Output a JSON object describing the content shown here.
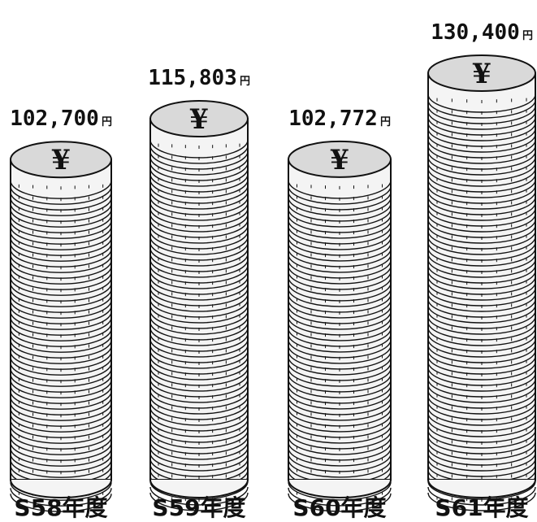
{
  "chart_data": {
    "type": "bar",
    "style": "coin-stack pictogram",
    "categories": [
      "S58年度",
      "S59年度",
      "S60年度",
      "S61年度"
    ],
    "values": [
      102700,
      115803,
      102772,
      130400
    ],
    "value_labels": [
      "102,700",
      "115,803",
      "102,772",
      "130,400"
    ],
    "unit": "円",
    "coin_symbol": "¥",
    "title": "",
    "xlabel": "",
    "ylabel": "",
    "ylim": [
      0,
      130400
    ],
    "grid": false,
    "legend": "none",
    "colors": {
      "ink": "#111111",
      "coin_fill": "#f4f4f4",
      "coin_top": "#d9d9d9"
    }
  }
}
